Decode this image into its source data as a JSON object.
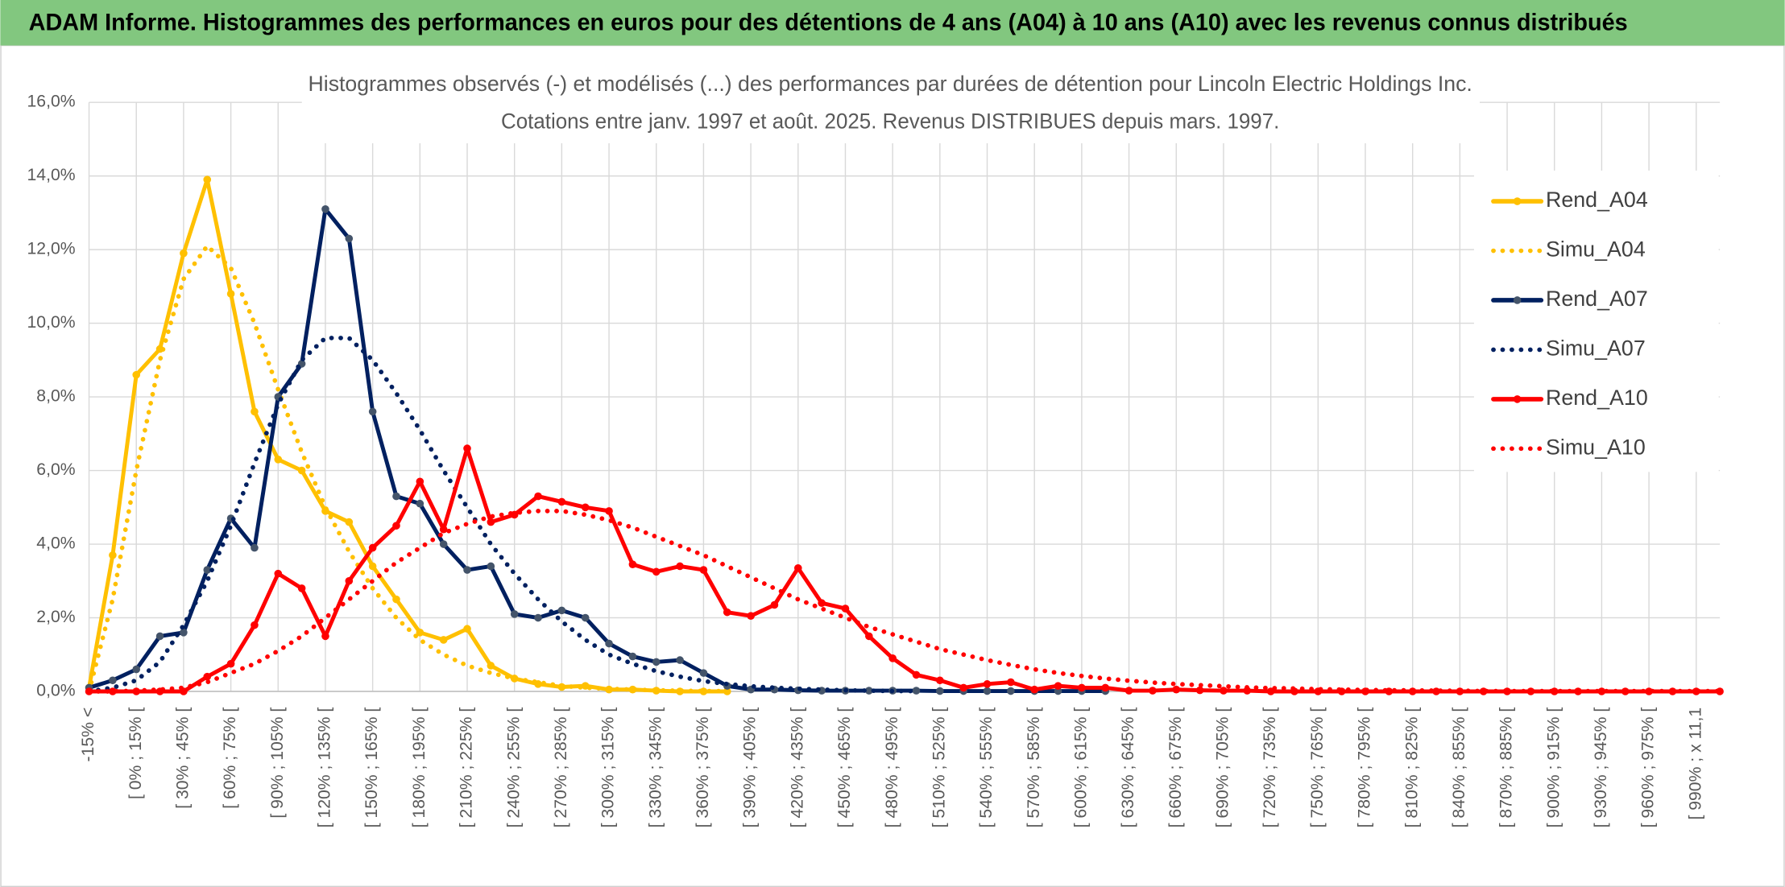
{
  "header": {
    "title": "ADAM Informe. Histogrammes des performances en euros pour des détentions de 4 ans (A04) à 10 ans (A10) avec les revenus connus distribués"
  },
  "chart_data": {
    "type": "line",
    "title": "Histogrammes observés (-) et modélisés (...) des performances par durées de détention pour Lincoln Electric Holdings Inc.",
    "subtitle": "Cotations entre janv. 1997 et août. 2025. Revenus DISTRIBUES depuis mars. 1997.",
    "categories": [
      "-15% <",
      null,
      "[ 0% ; 15% [",
      null,
      "[ 30% ; 45% [",
      null,
      "[ 60% ; 75% [",
      null,
      "[ 90% ; 105% [",
      null,
      "[ 120% ; 135% [",
      null,
      "[ 150% ; 165% [",
      null,
      "[ 180% ; 195% [",
      null,
      "[ 210% ; 225% [",
      null,
      "[ 240% ; 255% [",
      null,
      "[ 270% ; 285% [",
      null,
      "[ 300% ; 315% [",
      null,
      "[ 330% ; 345% [",
      null,
      "[ 360% ; 375% [",
      null,
      "[ 390% ; 405% [",
      null,
      "[ 420% ; 435% [",
      null,
      "[ 450% ; 465% [",
      null,
      "[ 480% ; 495% [",
      null,
      "[ 510% ; 525% [",
      null,
      "[ 540% ; 555% [",
      null,
      "[ 570% ; 585% [",
      null,
      "[ 600% ; 615% [",
      null,
      "[ 630% ; 645% [",
      null,
      "[ 660% ; 675% [",
      null,
      "[ 690% ; 705% [",
      null,
      "[ 720% ; 735% [",
      null,
      "[ 750% ; 765% [",
      null,
      "[ 780% ; 795% [",
      null,
      "[ 810% ; 825% [",
      null,
      "[ 840% ; 855% [",
      null,
      "[ 870% ; 885% [",
      null,
      "[ 900% ; 915% [",
      null,
      "[ 930% ; 945% [",
      null,
      "[ 960% ; 975% [",
      null,
      "[ 990% ; x 11,1",
      null
    ],
    "series": [
      {
        "name": "Rend_A04",
        "color": "#ffc000",
        "marker_color": "#ffc000",
        "style": "solid",
        "values": [
          0.1,
          3.7,
          8.6,
          9.3,
          11.9,
          13.9,
          10.8,
          7.6,
          6.3,
          6.0,
          4.9,
          4.6,
          3.4,
          2.5,
          1.6,
          1.4,
          1.7,
          0.7,
          0.35,
          0.2,
          0.12,
          0.15,
          0.05,
          0.05,
          0.02,
          0,
          0,
          0,
          null,
          null,
          null,
          null,
          null,
          null,
          null,
          null,
          null,
          null,
          null,
          null,
          null,
          null,
          null,
          null,
          null,
          null,
          null,
          null,
          null,
          null,
          null,
          null,
          null,
          null,
          null,
          null,
          null,
          null,
          null,
          null,
          null,
          null,
          null,
          null,
          null,
          null,
          null,
          null,
          null,
          null
        ]
      },
      {
        "name": "Simu_A04",
        "color": "#ffc000",
        "style": "dotted",
        "values": [
          0,
          2.5,
          6.0,
          9.0,
          11.2,
          12.1,
          11.5,
          10.0,
          8.2,
          6.5,
          5.0,
          3.8,
          2.8,
          2.0,
          1.4,
          1.0,
          0.7,
          0.5,
          0.35,
          0.25,
          0.15,
          0.1,
          0.07,
          0.05,
          0.03,
          0.02,
          0.01,
          0.01,
          null,
          null,
          null,
          null,
          null,
          null,
          null,
          null,
          null,
          null,
          null,
          null,
          null,
          null,
          null,
          null,
          null,
          null,
          null,
          null,
          null,
          null,
          null,
          null,
          null,
          null,
          null,
          null,
          null,
          null,
          null,
          null,
          null,
          null,
          null,
          null,
          null,
          null,
          null,
          null,
          null,
          null
        ]
      },
      {
        "name": "Rend_A07",
        "color": "#002060",
        "marker_color": "#44546a",
        "style": "solid",
        "values": [
          0.1,
          0.3,
          0.6,
          1.5,
          1.6,
          3.3,
          4.7,
          3.9,
          8.0,
          8.9,
          13.1,
          12.3,
          7.6,
          5.3,
          5.1,
          4.0,
          3.3,
          3.4,
          2.1,
          2.0,
          2.2,
          2.0,
          1.3,
          0.95,
          0.8,
          0.85,
          0.5,
          0.15,
          0.05,
          0.05,
          0.03,
          0.02,
          0.02,
          0.02,
          0.02,
          0.02,
          0.01,
          0.01,
          0.01,
          0.01,
          0.01,
          0.01,
          0.01,
          0.01,
          null,
          null,
          null,
          null,
          null,
          null,
          null,
          null,
          null,
          null,
          null,
          null,
          null,
          null,
          null,
          null,
          null,
          null,
          null,
          null,
          null,
          null,
          null,
          null,
          null,
          null
        ]
      },
      {
        "name": "Simu_A07",
        "color": "#002060",
        "style": "dotted",
        "values": [
          0,
          0.1,
          0.3,
          0.8,
          1.8,
          3.0,
          4.5,
          6.2,
          7.8,
          9.0,
          9.6,
          9.6,
          9.0,
          8.1,
          7.1,
          6.0,
          5.0,
          4.0,
          3.2,
          2.5,
          1.9,
          1.4,
          1.0,
          0.75,
          0.55,
          0.4,
          0.28,
          0.2,
          0.14,
          0.1,
          0.07,
          0.05,
          0.03,
          0.02,
          0.01,
          0.01,
          null,
          null,
          null,
          null,
          null,
          null,
          null,
          null,
          null,
          null,
          null,
          null,
          null,
          null,
          null,
          null,
          null,
          null,
          null,
          null,
          null,
          null,
          null,
          null,
          null,
          null,
          null,
          null,
          null,
          null,
          null,
          null,
          null,
          null
        ]
      },
      {
        "name": "Rend_A10",
        "color": "#ff0000",
        "marker_color": "#ff0000",
        "style": "solid",
        "values": [
          0,
          0,
          0,
          0,
          0,
          0.4,
          0.75,
          1.8,
          3.2,
          2.8,
          1.5,
          3.0,
          3.9,
          4.5,
          5.7,
          4.4,
          6.6,
          4.6,
          4.8,
          5.3,
          5.15,
          5.0,
          4.9,
          3.45,
          3.25,
          3.4,
          3.3,
          2.15,
          2.05,
          2.35,
          3.35,
          2.4,
          2.25,
          1.5,
          0.9,
          0.45,
          0.3,
          0.1,
          0.2,
          0.25,
          0.05,
          0.15,
          0.1,
          0.1,
          0.02,
          0.02,
          0.05,
          0.03,
          0.02,
          0.02,
          0,
          0,
          0,
          0,
          0,
          0,
          0,
          0,
          0,
          0,
          0,
          0,
          0,
          0,
          0,
          0,
          0,
          0,
          0,
          0
        ]
      },
      {
        "name": "Simu_A10",
        "color": "#ff0000",
        "style": "dotted",
        "values": [
          0,
          0,
          0.02,
          0.05,
          0.1,
          0.25,
          0.5,
          0.75,
          1.1,
          1.5,
          2.0,
          2.5,
          3.0,
          3.5,
          3.9,
          4.3,
          4.55,
          4.75,
          4.85,
          4.9,
          4.9,
          4.8,
          4.65,
          4.45,
          4.2,
          3.95,
          3.7,
          3.4,
          3.1,
          2.8,
          2.5,
          2.25,
          2.0,
          1.75,
          1.55,
          1.35,
          1.15,
          1.0,
          0.85,
          0.72,
          0.6,
          0.5,
          0.42,
          0.35,
          0.29,
          0.24,
          0.2,
          0.17,
          0.14,
          0.11,
          0.09,
          0.08,
          0.06,
          0.05,
          0.04,
          0.03,
          0.03,
          0.02,
          0.02,
          0.01,
          0.01,
          0.01,
          0.01,
          0.01,
          0.01,
          0.01,
          0.01,
          0.01,
          0.01,
          0.01
        ]
      }
    ],
    "ylim": [
      0,
      16
    ],
    "yticks": [
      {
        "value": 0,
        "label": "0,0%"
      },
      {
        "value": 2,
        "label": "2,0%"
      },
      {
        "value": 4,
        "label": "4,0%"
      },
      {
        "value": 6,
        "label": "6,0%"
      },
      {
        "value": 8,
        "label": "8,0%"
      },
      {
        "value": 10,
        "label": "10,0%"
      },
      {
        "value": 12,
        "label": "12,0%"
      },
      {
        "value": 14,
        "label": "14,0%"
      },
      {
        "value": 16,
        "label": "16,0%"
      }
    ],
    "grid": true,
    "legend": "right"
  }
}
